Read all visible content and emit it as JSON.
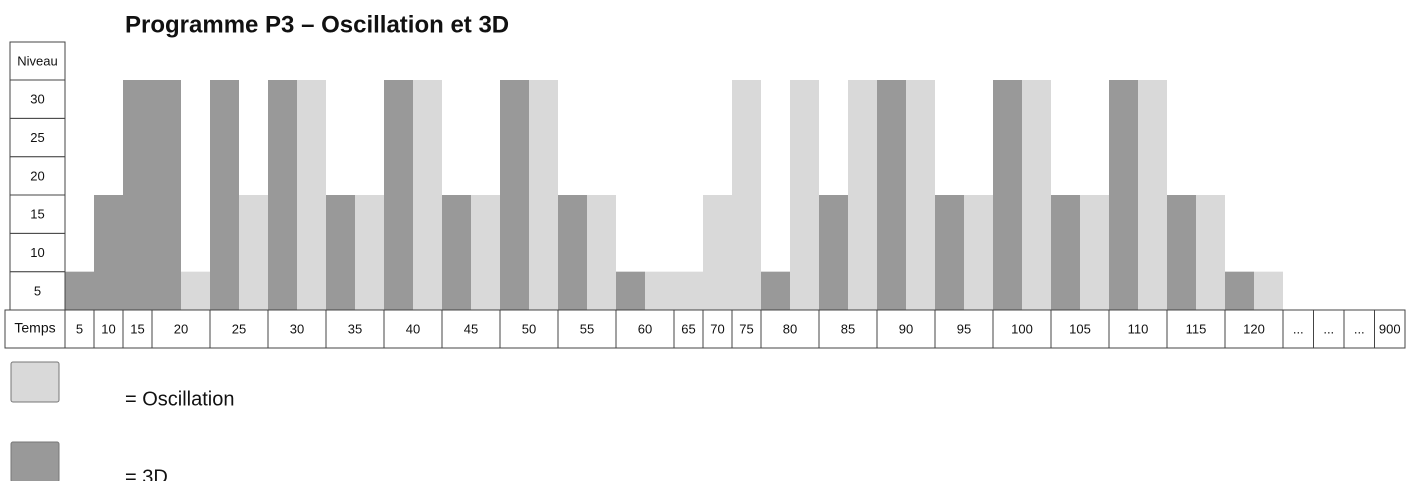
{
  "chart_data": {
    "type": "bar",
    "title": "Programme  P3 – Oscillation et 3D",
    "y_label": "Niveau",
    "x_label": "Temps",
    "ylim": [
      0,
      30
    ],
    "yticks": [
      5,
      10,
      15,
      20,
      25,
      30
    ],
    "series": [
      {
        "name": "= Oscillation",
        "color": "#d9d9d9"
      },
      {
        "name": "= 3D",
        "color": "#999999"
      }
    ],
    "cells": [
      {
        "label": "5",
        "bars": [
          {
            "series": 1,
            "value": 5
          }
        ]
      },
      {
        "label": "10",
        "bars": [
          {
            "series": 1,
            "value": 15
          }
        ]
      },
      {
        "label": "15",
        "bars": [
          {
            "series": 1,
            "value": 30
          }
        ]
      },
      {
        "label": "20",
        "bars": [
          {
            "series": 1,
            "value": 30
          },
          {
            "series": 0,
            "value": 5
          }
        ]
      },
      {
        "label": "25",
        "bars": [
          {
            "series": 1,
            "value": 30
          },
          {
            "series": 0,
            "value": 15
          }
        ]
      },
      {
        "label": "30",
        "bars": [
          {
            "series": 1,
            "value": 30
          },
          {
            "series": 0,
            "value": 30
          }
        ]
      },
      {
        "label": "35",
        "bars": [
          {
            "series": 1,
            "value": 15
          },
          {
            "series": 0,
            "value": 15
          }
        ]
      },
      {
        "label": "40",
        "bars": [
          {
            "series": 1,
            "value": 30
          },
          {
            "series": 0,
            "value": 30
          }
        ]
      },
      {
        "label": "45",
        "bars": [
          {
            "series": 1,
            "value": 15
          },
          {
            "series": 0,
            "value": 15
          }
        ]
      },
      {
        "label": "50",
        "bars": [
          {
            "series": 1,
            "value": 30
          },
          {
            "series": 0,
            "value": 30
          }
        ]
      },
      {
        "label": "55",
        "bars": [
          {
            "series": 1,
            "value": 15
          },
          {
            "series": 0,
            "value": 15
          }
        ]
      },
      {
        "label": "60",
        "bars": [
          {
            "series": 1,
            "value": 5
          },
          {
            "series": 0,
            "value": 5
          }
        ]
      },
      {
        "label": "65",
        "bars": [
          {
            "series": 0,
            "value": 5
          }
        ]
      },
      {
        "label": "70",
        "bars": [
          {
            "series": 0,
            "value": 15
          }
        ]
      },
      {
        "label": "75",
        "bars": [
          {
            "series": 0,
            "value": 30
          }
        ]
      },
      {
        "label": "80",
        "bars": [
          {
            "series": 1,
            "value": 5
          },
          {
            "series": 0,
            "value": 30
          }
        ]
      },
      {
        "label": "85",
        "bars": [
          {
            "series": 1,
            "value": 15
          },
          {
            "series": 0,
            "value": 30
          }
        ]
      },
      {
        "label": "90",
        "bars": [
          {
            "series": 1,
            "value": 30
          },
          {
            "series": 0,
            "value": 30
          }
        ]
      },
      {
        "label": "95",
        "bars": [
          {
            "series": 1,
            "value": 15
          },
          {
            "series": 0,
            "value": 15
          }
        ]
      },
      {
        "label": "100",
        "bars": [
          {
            "series": 1,
            "value": 30
          },
          {
            "series": 0,
            "value": 30
          }
        ]
      },
      {
        "label": "105",
        "bars": [
          {
            "series": 1,
            "value": 15
          },
          {
            "series": 0,
            "value": 15
          }
        ]
      },
      {
        "label": "110",
        "bars": [
          {
            "series": 1,
            "value": 30
          },
          {
            "series": 0,
            "value": 30
          }
        ]
      },
      {
        "label": "115",
        "bars": [
          {
            "series": 1,
            "value": 15
          },
          {
            "series": 0,
            "value": 15
          }
        ]
      },
      {
        "label": "120",
        "bars": [
          {
            "series": 1,
            "value": 5
          },
          {
            "series": 0,
            "value": 5
          }
        ]
      },
      {
        "label": "...",
        "bars": []
      },
      {
        "label": "...",
        "bars": []
      },
      {
        "label": "...",
        "bars": []
      },
      {
        "label": "900",
        "bars": []
      }
    ]
  }
}
